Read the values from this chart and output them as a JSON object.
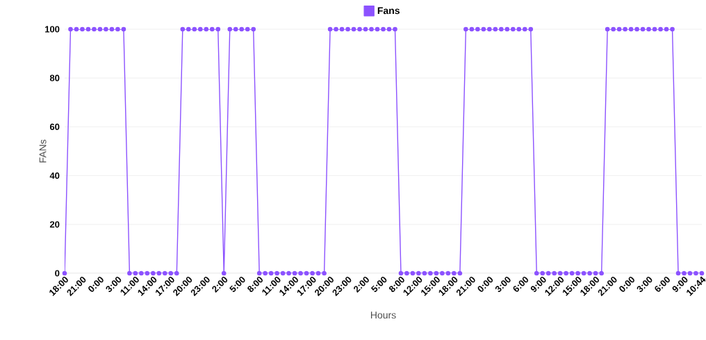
{
  "chart_data": {
    "type": "line",
    "xlabel": "Hours",
    "ylabel": "FANs",
    "categories": [
      "18:00",
      null,
      null,
      "21:00",
      null,
      null,
      "0:00",
      null,
      null,
      "3:00",
      null,
      null,
      "11:00",
      null,
      null,
      "14:00",
      null,
      null,
      "17:00",
      null,
      null,
      "20:00",
      null,
      null,
      "23:00",
      null,
      null,
      "2:00",
      null,
      null,
      "5:00",
      null,
      null,
      "8:00",
      null,
      null,
      "11:00",
      null,
      null,
      "14:00",
      null,
      null,
      "17:00",
      null,
      null,
      "20:00",
      null,
      null,
      "23:00",
      null,
      null,
      "2:00",
      null,
      null,
      "5:00",
      null,
      null,
      "8:00",
      null,
      null,
      "12:00",
      null,
      null,
      "15:00",
      null,
      null,
      "18:00",
      null,
      null,
      "21:00",
      null,
      null,
      "0:00",
      null,
      null,
      "3:00",
      null,
      null,
      "6:00",
      null,
      null,
      "9:00",
      null,
      null,
      "12:00",
      null,
      null,
      "15:00",
      null,
      null,
      "18:00",
      null,
      null,
      "21:00",
      null,
      null,
      "0:00",
      null,
      null,
      "3:00",
      null,
      null,
      "6:00",
      null,
      null,
      "9:00",
      null,
      null,
      "10:44"
    ],
    "series": [
      {
        "name": "Fans",
        "color": "#8c52ff",
        "values": [
          0,
          100,
          100,
          100,
          100,
          100,
          100,
          100,
          100,
          100,
          100,
          0,
          0,
          0,
          0,
          0,
          0,
          0,
          0,
          0,
          100,
          100,
          100,
          100,
          100,
          100,
          100,
          0,
          100,
          100,
          100,
          100,
          100,
          0,
          0,
          0,
          0,
          0,
          0,
          0,
          0,
          0,
          0,
          0,
          0,
          100,
          100,
          100,
          100,
          100,
          100,
          100,
          100,
          100,
          100,
          100,
          100,
          0,
          0,
          0,
          0,
          0,
          0,
          0,
          0,
          0,
          0,
          0,
          100,
          100,
          100,
          100,
          100,
          100,
          100,
          100,
          100,
          100,
          100,
          100,
          0,
          0,
          0,
          0,
          0,
          0,
          0,
          0,
          0,
          0,
          0,
          0,
          100,
          100,
          100,
          100,
          100,
          100,
          100,
          100,
          100,
          100,
          100,
          100,
          0,
          0,
          0,
          0,
          0
        ]
      }
    ],
    "ylim": [
      0,
      100
    ],
    "yticks": [
      0,
      20,
      40,
      60,
      80,
      100
    ],
    "grid": "y",
    "legend": "top",
    "marker": "circle"
  }
}
